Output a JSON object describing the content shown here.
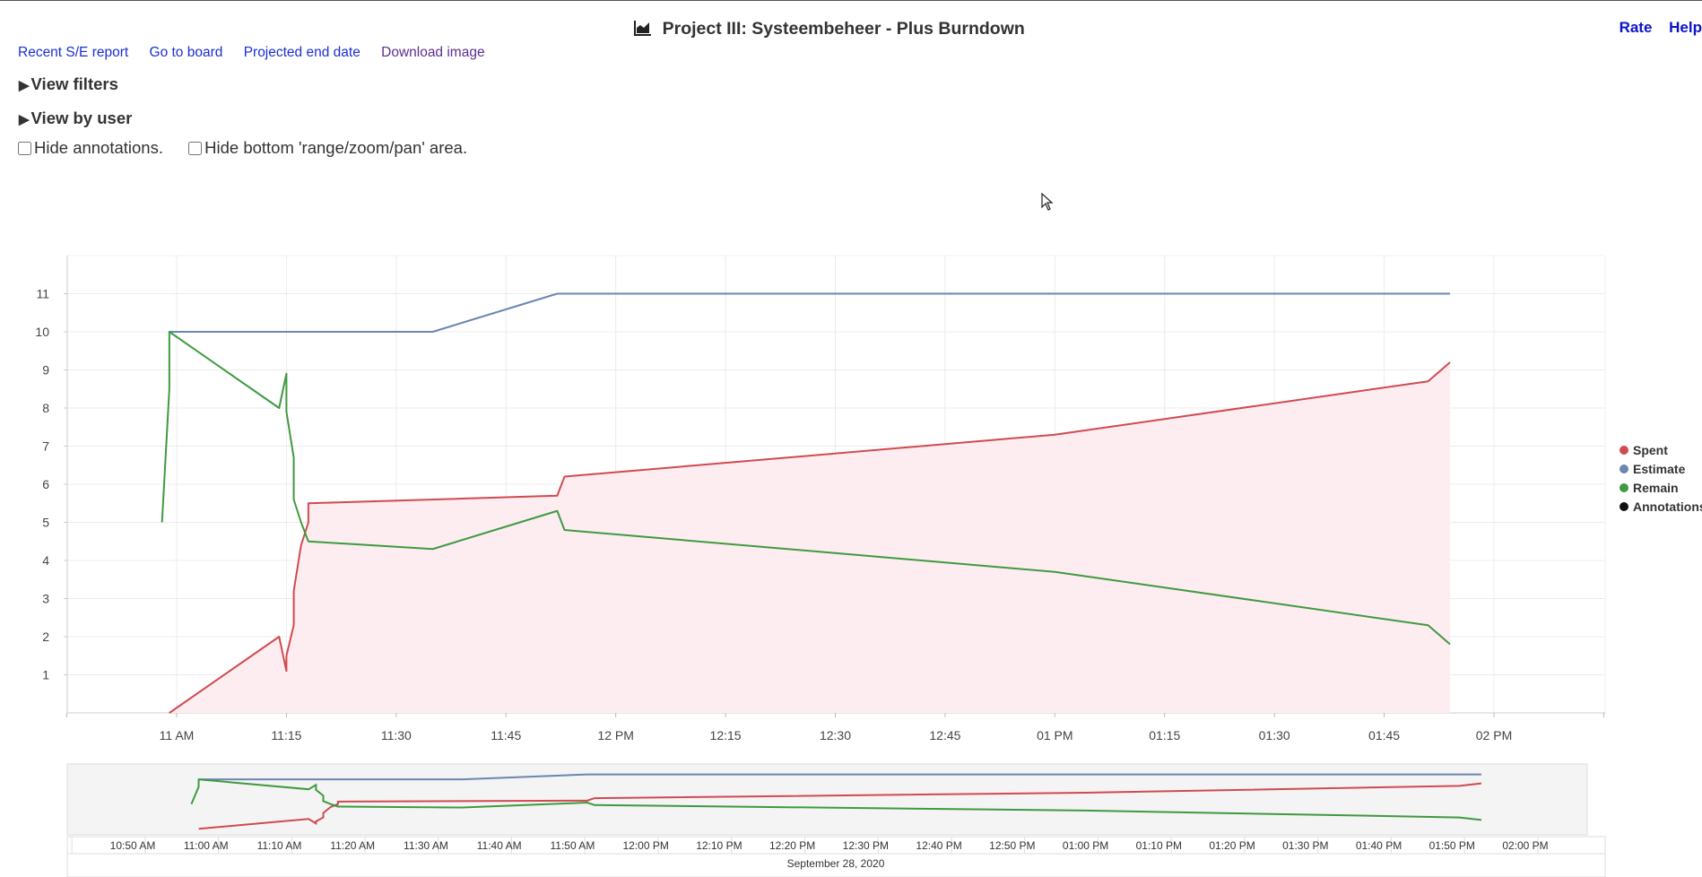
{
  "header": {
    "title": "Project III: Systeembeheer - Plus Burndown",
    "rate_label": "Rate",
    "help_label": "Help"
  },
  "links": {
    "recent_report": "Recent S/E report",
    "go_to_board": "Go to board",
    "projected_end_date": "Projected end date",
    "download_image": "Download image"
  },
  "sections": {
    "view_filters": "View filters",
    "view_by_user": "View by user"
  },
  "options": {
    "hide_annotations": {
      "label": "Hide annotations.",
      "checked": false
    },
    "hide_range": {
      "label": "Hide bottom 'range/zoom/pan' area.",
      "checked": false
    }
  },
  "icons": {
    "title_icon": "area-chart-icon",
    "cursor": "mouse-cursor-icon"
  },
  "chart_data": {
    "type": "line",
    "title": "",
    "x_unit": "time",
    "ylim": [
      0,
      12
    ],
    "yticks": [
      1,
      2,
      3,
      4,
      5,
      6,
      7,
      8,
      9,
      10,
      11
    ],
    "xlim": [
      "10:45",
      "14:15"
    ],
    "x_tick_labels": [
      {
        "t": "11:00",
        "label": "11 AM"
      },
      {
        "t": "11:15",
        "label": "11:15"
      },
      {
        "t": "11:30",
        "label": "11:30"
      },
      {
        "t": "11:45",
        "label": "11:45"
      },
      {
        "t": "12:00",
        "label": "12 PM"
      },
      {
        "t": "12:15",
        "label": "12:15"
      },
      {
        "t": "12:30",
        "label": "12:30"
      },
      {
        "t": "12:45",
        "label": "12:45"
      },
      {
        "t": "13:00",
        "label": "01 PM"
      },
      {
        "t": "13:15",
        "label": "01:15"
      },
      {
        "t": "13:30",
        "label": "01:30"
      },
      {
        "t": "13:45",
        "label": "01:45"
      },
      {
        "t": "14:00",
        "label": "02 PM"
      }
    ],
    "grid": true,
    "legend": "right",
    "series": [
      {
        "name": "Spent",
        "color": "#d04a50",
        "fill": "#fdedf1",
        "points": [
          [
            "10:59",
            0
          ],
          [
            "11:14",
            2.0
          ],
          [
            "11:15",
            1.1
          ],
          [
            "11:15",
            1.5
          ],
          [
            "11:16",
            2.3
          ],
          [
            "11:16",
            3.2
          ],
          [
            "11:17",
            4.4
          ],
          [
            "11:18",
            5.0
          ],
          [
            "11:18",
            5.5
          ],
          [
            "11:52",
            5.7
          ],
          [
            "11:53",
            6.2
          ],
          [
            "13:00",
            7.3
          ],
          [
            "13:51",
            8.7
          ],
          [
            "13:54",
            9.2
          ]
        ]
      },
      {
        "name": "Estimate",
        "color": "#6c85b1",
        "fill": "none",
        "points": [
          [
            "10:59",
            10
          ],
          [
            "11:35",
            10
          ],
          [
            "11:52",
            11
          ],
          [
            "13:54",
            11
          ]
        ]
      },
      {
        "name": "Remain",
        "color": "#3f9a3f",
        "fill": "none",
        "points": [
          [
            "10:58",
            5.0
          ],
          [
            "10:59",
            8.5
          ],
          [
            "10:59",
            10
          ],
          [
            "11:14",
            8.0
          ],
          [
            "11:15",
            8.9
          ],
          [
            "11:15",
            7.9
          ],
          [
            "11:16",
            6.7
          ],
          [
            "11:16",
            5.6
          ],
          [
            "11:17",
            5.0
          ],
          [
            "11:18",
            4.5
          ],
          [
            "11:35",
            4.3
          ],
          [
            "11:52",
            5.3
          ],
          [
            "11:53",
            4.8
          ],
          [
            "13:00",
            3.7
          ],
          [
            "13:51",
            2.3
          ],
          [
            "13:54",
            1.8
          ]
        ]
      },
      {
        "name": "Annotations",
        "color": "#111111",
        "fill": "none",
        "points": []
      }
    ],
    "navigator": {
      "x_tick_labels": [
        {
          "t": "10:50",
          "label": "10:50 AM"
        },
        {
          "t": "11:00",
          "label": "11:00 AM"
        },
        {
          "t": "11:10",
          "label": "11:10 AM"
        },
        {
          "t": "11:20",
          "label": "11:20 AM"
        },
        {
          "t": "11:30",
          "label": "11:30 AM"
        },
        {
          "t": "11:40",
          "label": "11:40 AM"
        },
        {
          "t": "11:50",
          "label": "11:50 AM"
        },
        {
          "t": "12:00",
          "label": "12:00 PM"
        },
        {
          "t": "12:10",
          "label": "12:10 PM"
        },
        {
          "t": "12:20",
          "label": "12:20 PM"
        },
        {
          "t": "12:30",
          "label": "12:30 PM"
        },
        {
          "t": "12:40",
          "label": "12:40 PM"
        },
        {
          "t": "12:50",
          "label": "12:50 PM"
        },
        {
          "t": "13:00",
          "label": "01:00 PM"
        },
        {
          "t": "13:10",
          "label": "01:10 PM"
        },
        {
          "t": "13:20",
          "label": "01:20 PM"
        },
        {
          "t": "13:30",
          "label": "01:30 PM"
        },
        {
          "t": "13:40",
          "label": "01:40 PM"
        },
        {
          "t": "13:50",
          "label": "01:50 PM"
        },
        {
          "t": "14:00",
          "label": "02:00 PM"
        }
      ],
      "date_label": "September 28, 2020"
    }
  }
}
